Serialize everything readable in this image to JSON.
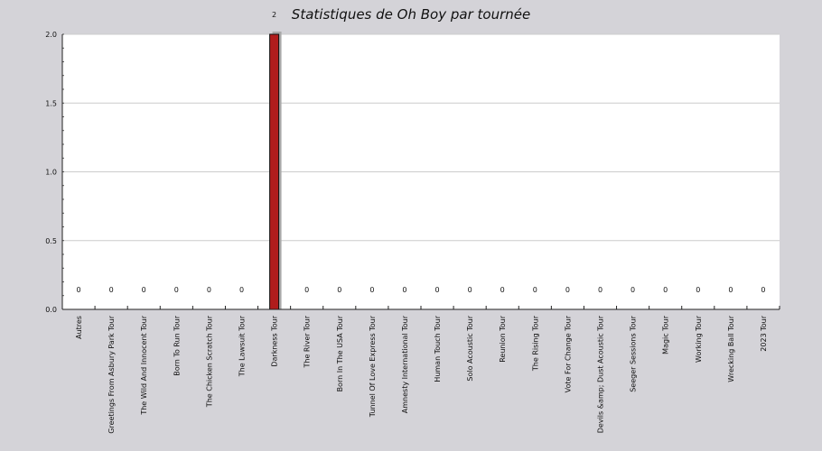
{
  "chart_data": {
    "type": "bar",
    "title": "Statistiques de Oh Boy par tournée",
    "xlabel": "",
    "ylabel": "",
    "ylim": [
      0,
      2.0
    ],
    "yticks": [
      "0.0",
      "0.5",
      "1.0",
      "1.5",
      "2.0"
    ],
    "grid": true,
    "categories": [
      "Autres",
      "Greetings From Asbury Park Tour",
      "The Wild And Innocent Tour",
      "Born To Run Tour",
      "The Chicken Scratch Tour",
      "The Lawsuit Tour",
      "Darkness Tour",
      "The River Tour",
      "Born In The USA Tour",
      "Tunnel Of Love Express Tour",
      "Amnesty International Tour",
      "Human Touch Tour",
      "Solo Acoustic Tour",
      "Reunion Tour",
      "The Rising Tour",
      "Vote For Change Tour",
      "Devils &amp; Dust Acoustic Tour",
      "Seeger Sessions Tour",
      "Magic Tour",
      "Working Tour",
      "Wrecking Ball Tour",
      "2023 Tour"
    ],
    "values": [
      0,
      0,
      0,
      0,
      0,
      0,
      2,
      0,
      0,
      0,
      0,
      0,
      0,
      0,
      0,
      0,
      0,
      0,
      0,
      0,
      0,
      0
    ],
    "bar_color": "#b01c1c",
    "shadow_color": "#a9a9a9",
    "grid_color": "#cccccc",
    "plot_background": "#ffffff",
    "background": "#d4d3d8"
  }
}
